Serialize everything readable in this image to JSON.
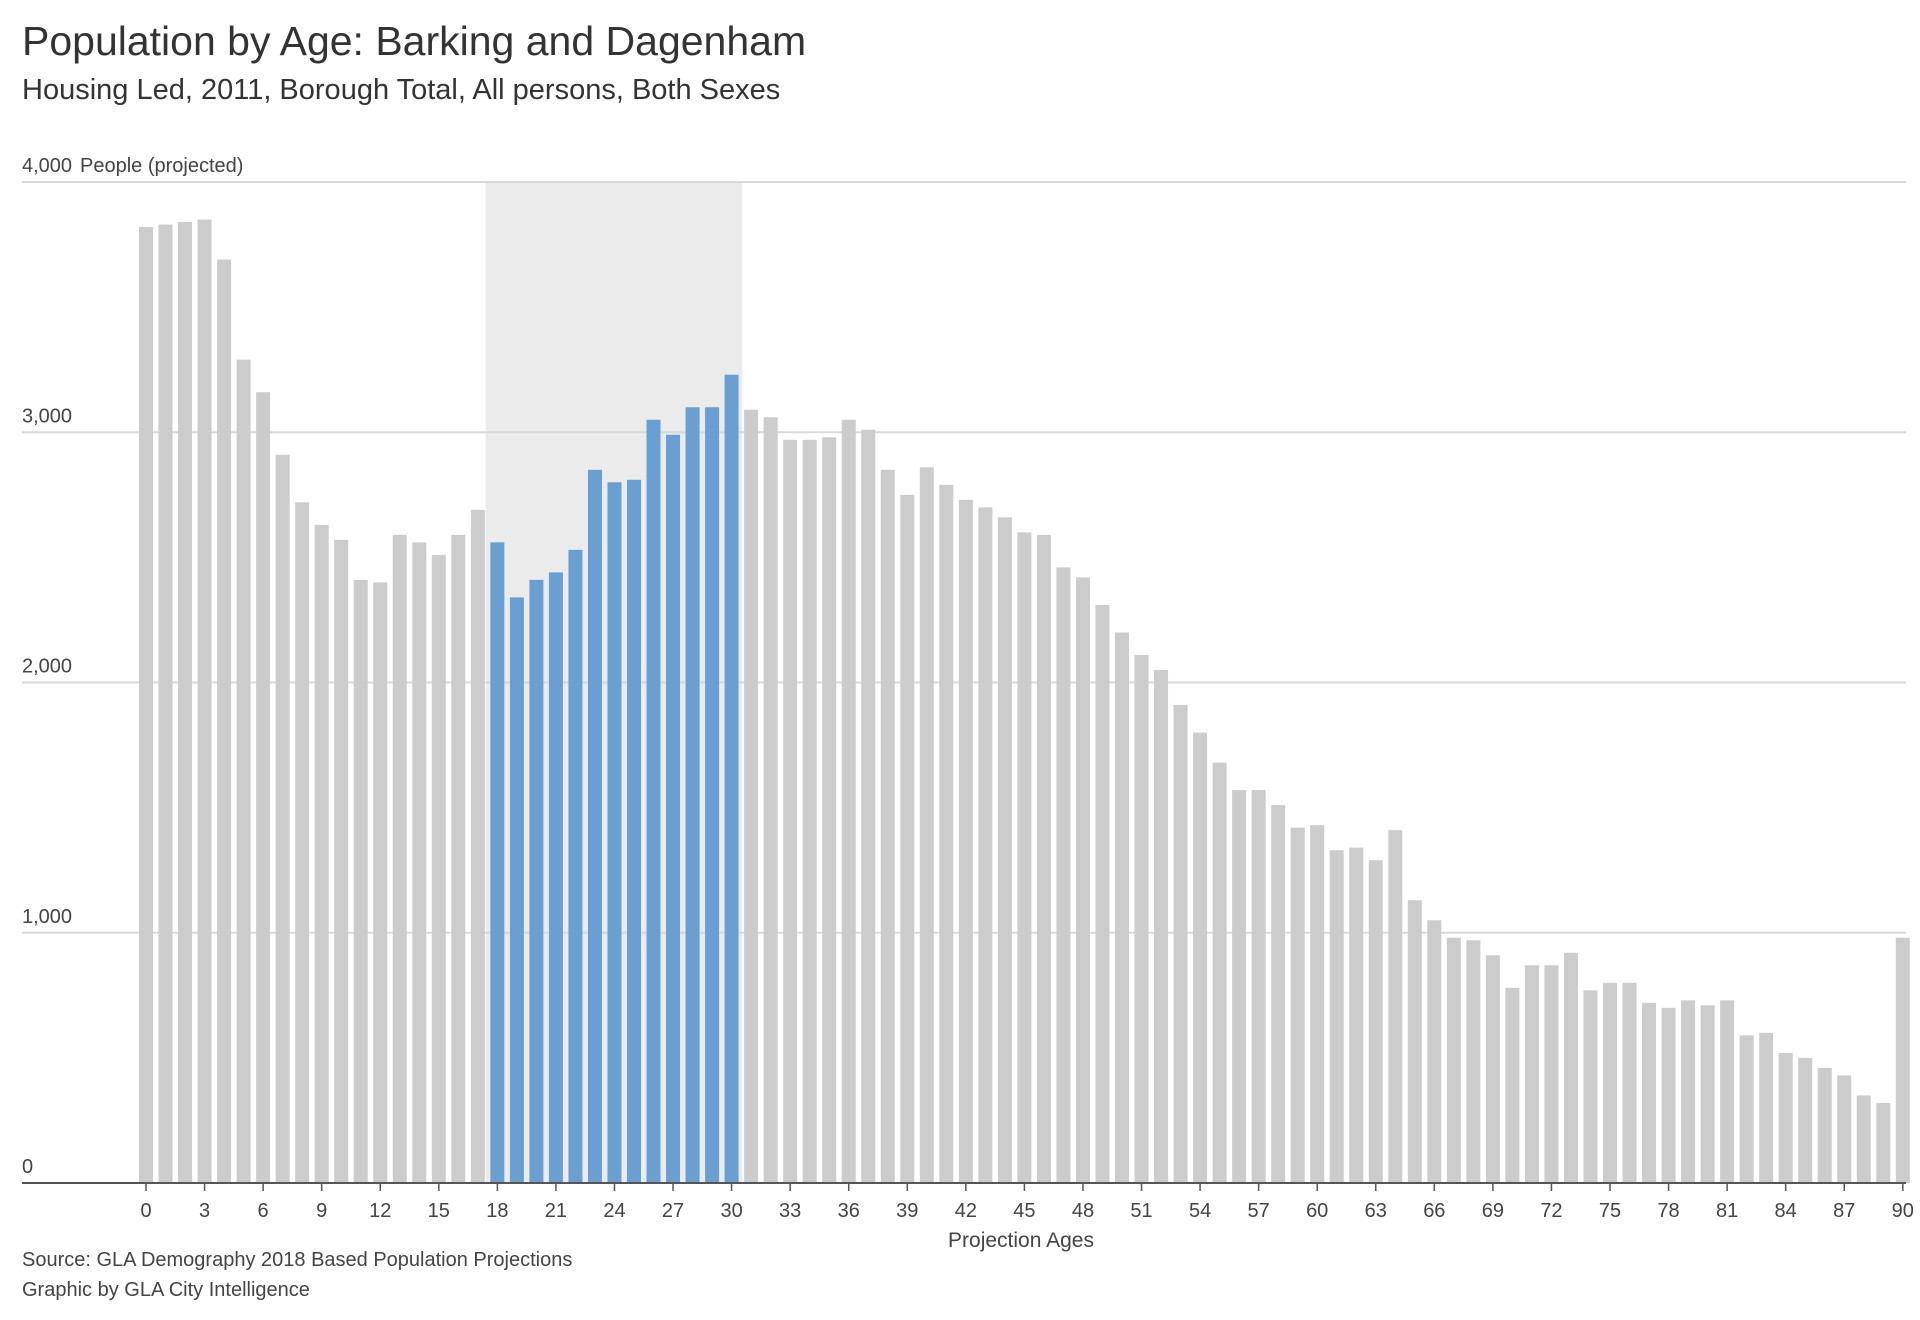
{
  "title": "Population by Age: Barking and Dagenham",
  "subtitle": "Housing Led, 2011, Borough Total, All persons, Both Sexes",
  "footer": {
    "source": "Source: GLA Demography 2018 Based Population Projections",
    "credit": "Graphic by GLA City Intelligence"
  },
  "chart_data": {
    "type": "bar",
    "ylabel": "People (projected)",
    "xlabel": "Projection Ages",
    "ylim": [
      0,
      4000
    ],
    "y_ticks": [
      {
        "value": 0,
        "label": "0"
      },
      {
        "value": 1000,
        "label": "1,000"
      },
      {
        "value": 2000,
        "label": "2,000"
      },
      {
        "value": 3000,
        "label": "3,000"
      },
      {
        "value": 4000,
        "label": "4,000"
      }
    ],
    "x_ticks": [
      0,
      3,
      6,
      9,
      12,
      15,
      18,
      21,
      24,
      27,
      30,
      33,
      36,
      39,
      42,
      45,
      48,
      51,
      54,
      57,
      60,
      63,
      66,
      69,
      72,
      75,
      78,
      81,
      84,
      87,
      90
    ],
    "highlight_range": [
      18,
      30
    ],
    "colors": {
      "default": "#cccccc",
      "highlight": "#6a9fd2",
      "band": "#ebebeb",
      "grid": "#d9d9d9",
      "axis": "#555555"
    },
    "grid": true,
    "categories": [
      0,
      1,
      2,
      3,
      4,
      5,
      6,
      7,
      8,
      9,
      10,
      11,
      12,
      13,
      14,
      15,
      16,
      17,
      18,
      19,
      20,
      21,
      22,
      23,
      24,
      25,
      26,
      27,
      28,
      29,
      30,
      31,
      32,
      33,
      34,
      35,
      36,
      37,
      38,
      39,
      40,
      41,
      42,
      43,
      44,
      45,
      46,
      47,
      48,
      49,
      50,
      51,
      52,
      53,
      54,
      55,
      56,
      57,
      58,
      59,
      60,
      61,
      62,
      63,
      64,
      65,
      66,
      67,
      68,
      69,
      70,
      71,
      72,
      73,
      74,
      75,
      76,
      77,
      78,
      79,
      80,
      81,
      82,
      83,
      84,
      85,
      86,
      87,
      88,
      89,
      90
    ],
    "values": [
      3820,
      3830,
      3840,
      3850,
      3690,
      3290,
      3160,
      2910,
      2720,
      2630,
      2570,
      2410,
      2400,
      2590,
      2560,
      2510,
      2590,
      2690,
      2560,
      2340,
      2410,
      2440,
      2530,
      2850,
      2800,
      2810,
      3050,
      2990,
      3100,
      3100,
      3230,
      3090,
      3060,
      2970,
      2970,
      2980,
      3050,
      3010,
      2850,
      2750,
      2860,
      2790,
      2730,
      2700,
      2660,
      2600,
      2590,
      2460,
      2420,
      2310,
      2200,
      2110,
      2050,
      1910,
      1800,
      1680,
      1570,
      1570,
      1510,
      1420,
      1430,
      1330,
      1340,
      1290,
      1410,
      1130,
      1050,
      980,
      970,
      910,
      780,
      870,
      870,
      920,
      770,
      800,
      800,
      720,
      700,
      730,
      710,
      730,
      590,
      600,
      520,
      500,
      460,
      430,
      350,
      320,
      980
    ]
  }
}
